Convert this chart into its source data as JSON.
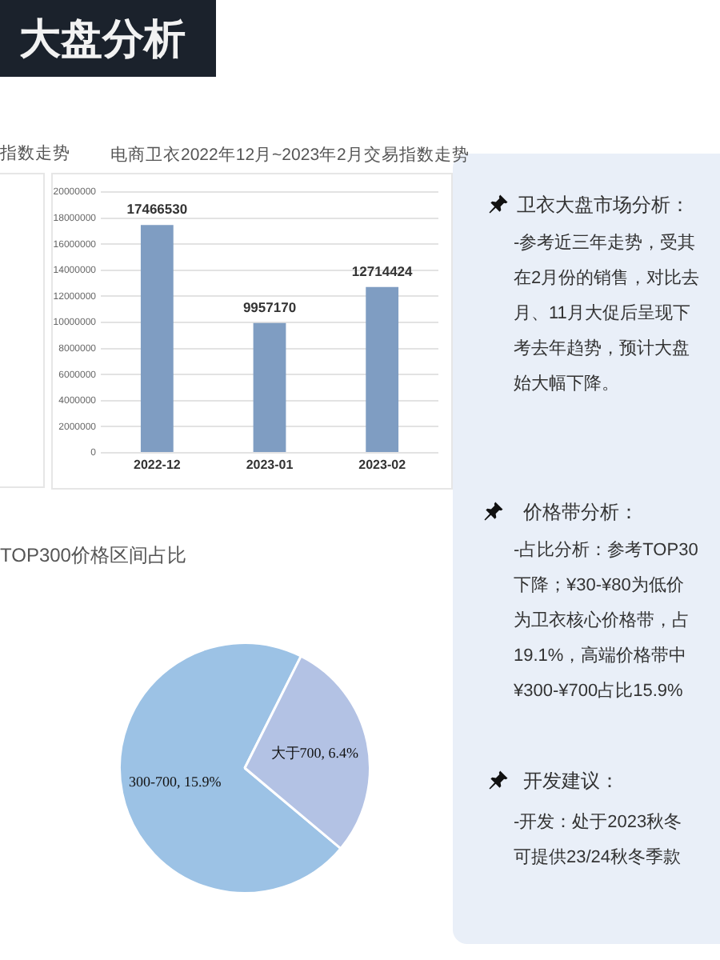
{
  "chart_data": [
    {
      "type": "other",
      "title": "大盘分析"
    },
    {
      "type": "other",
      "title": "指数走势"
    },
    {
      "type": "bar",
      "title": "电商卫衣2022年12月~2023年2月交易指数走势",
      "categories": [
        "2022-12",
        "2023-01",
        "2023-02"
      ],
      "values": [
        17466530,
        9957170,
        12714424
      ],
      "color": "#7f9dc2",
      "ylim": [
        0,
        20000000
      ],
      "yticks": [
        0,
        2000000,
        4000000,
        6000000,
        8000000,
        10000000,
        12000000,
        14000000,
        16000000,
        18000000,
        20000000
      ],
      "grid": "y",
      "data_labels": true
    },
    {
      "type": "other",
      "title": "卫衣大盘市场分析：",
      "annotations": [
        "-参考近三年走势，受其",
        "在2月份的销售，对比去",
        "月、11月大促后呈现下",
        "考去年趋势，预计大盘",
        "始大幅下降。"
      ]
    },
    {
      "type": "pie",
      "title": "TOP300价格区间占比",
      "categories": [
        "300-700",
        "大于700"
      ],
      "values": [
        15.9,
        6.4
      ],
      "colors": [
        "#9cc2e5",
        "#b3c2e4"
      ],
      "value_labels": [
        "15.9%",
        "6.4%"
      ]
    },
    {
      "type": "other",
      "title": "价格带分析：",
      "annotations": [
        "-占比分析：参考TOP30",
        "下降；¥30-¥80为低价",
        "为卫衣核心价格带，占",
        "19.1%，高端价格带中",
        "¥300-¥700占比15.9%"
      ]
    },
    {
      "type": "other",
      "title": "开发建议：",
      "annotations": [
        "-开发：处于2023秋冬",
        "可提供23/24秋冬季款"
      ]
    }
  ]
}
